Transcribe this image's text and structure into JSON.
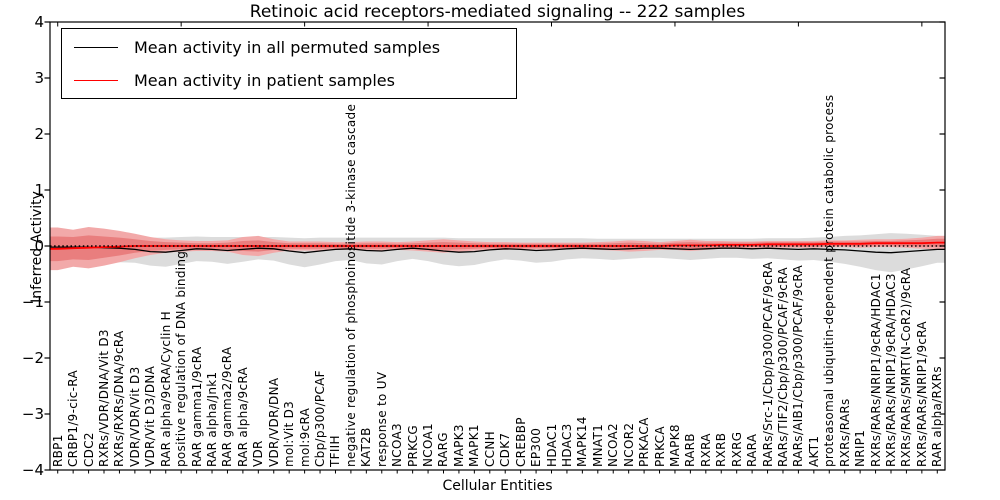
{
  "title": "Retinoic acid receptors-mediated signaling -- 222 samples",
  "axes": {
    "x_label": "Cellular Entities",
    "y_label": "Inferred Activity",
    "y_ticks": [
      "4",
      "3",
      "2",
      "1",
      "0",
      "−1",
      "−2",
      "−3",
      "−4"
    ],
    "ylim": [
      -4,
      4
    ]
  },
  "legend": {
    "items": [
      {
        "label": "Mean activity in all permuted samples",
        "color": "#000000"
      },
      {
        "label": "Mean activity in patient samples",
        "color": "#ff0000"
      }
    ]
  },
  "colors": {
    "background": "#ffffff",
    "frame": "#000000",
    "permuted_line": "#000000",
    "patient_line": "#ff0000",
    "permuted_band": "#dcdcdc",
    "patient_band_outer": "#f2a9a9",
    "patient_band_inner": "#e97e7e",
    "zero_line": "#000000"
  },
  "chart_data": {
    "type": "line",
    "title": "Retinoic acid receptors-mediated signaling -- 222 samples",
    "xlabel": "Cellular Entities",
    "ylabel": "Inferred Activity",
    "ylim": [
      -4,
      4
    ],
    "grid": false,
    "legend_position": "upper left",
    "zero_line": {
      "y": 0,
      "style": "dotted",
      "color": "#000000"
    },
    "categories": [
      "RBP1",
      "CRBP1/9-cic-RA",
      "CDC2",
      "RXRs/VDR/DNA/Vit D3",
      "RXRs/RXRs/DNA/9cRA",
      "VDR/VDR/Vit D3",
      "VDR/Vit D3/DNA",
      "RAR alpha/9cRA/Cyclin H",
      "positive regulation of DNA binding",
      "RAR gamma1/9cRA",
      "RAR alpha/Jnk1",
      "RAR gamma2/9cRA",
      "RAR alpha/9cRA",
      "VDR",
      "VDR/VDR/DNA",
      "mol:Vit D3",
      "mol:9cRA",
      "Cbp/p300/PCAF",
      "TFIIH",
      "negative regulation of phosphoinositide 3-kinase cascade",
      "KAT2B",
      "response to UV",
      "NCOA3",
      "PRKCG",
      "NCOA1",
      "RARG",
      "MAPK3",
      "MAPK1",
      "CCNH",
      "CDK7",
      "CREBBP",
      "EP300",
      "HDAC1",
      "HDAC3",
      "MAPK14",
      "MNAT1",
      "NCOA2",
      "NCOR2",
      "PRKACA",
      "PRKCA",
      "MAPK8",
      "RARB",
      "RXRA",
      "RXRB",
      "RXRG",
      "RARA",
      "RARs/Src-1/Cbp/p300/PCAF/9cRA",
      "RARs/TIF2/Cbp/p300/PCAF/9cRA",
      "RARs/AIB1/Cbp/p300/PCAF/9cRA",
      "AKT1",
      "proteasomal ubiquitin-dependent protein catabolic process",
      "RXRs/RARs",
      "NRIP1",
      "RXRs/RARs/NRIP1/9cRA/HDAC1",
      "RXRs/RARs/NRIP1/9cRA/HDAC3",
      "RXRs/RARs/SMRT(N-CoR2)/9cRA",
      "RXRs/RARs/NRIP1/9cRA",
      "RAR alpha/RXRs"
    ],
    "series": [
      {
        "name": "Mean activity in all permuted samples",
        "color": "#000000",
        "values": [
          -0.02,
          -0.02,
          -0.02,
          -0.03,
          -0.04,
          -0.06,
          -0.1,
          -0.11,
          -0.08,
          -0.05,
          -0.06,
          -0.08,
          -0.06,
          -0.04,
          -0.05,
          -0.09,
          -0.12,
          -0.09,
          -0.06,
          -0.05,
          -0.08,
          -0.09,
          -0.06,
          -0.04,
          -0.06,
          -0.09,
          -0.11,
          -0.1,
          -0.07,
          -0.05,
          -0.06,
          -0.08,
          -0.07,
          -0.05,
          -0.04,
          -0.05,
          -0.06,
          -0.05,
          -0.04,
          -0.04,
          -0.05,
          -0.06,
          -0.05,
          -0.04,
          -0.04,
          -0.05,
          -0.04,
          -0.05,
          -0.06,
          -0.05,
          -0.06,
          -0.07,
          -0.09,
          -0.11,
          -0.12,
          -0.1,
          -0.08,
          -0.06
        ]
      },
      {
        "name": "Mean activity in patient samples",
        "color": "#ff0000",
        "values": [
          -0.05,
          -0.04,
          -0.03,
          -0.02,
          -0.01,
          0,
          0,
          0,
          0,
          0,
          0,
          0,
          0,
          0,
          0,
          0,
          0,
          0,
          0,
          0,
          0,
          0,
          0,
          0,
          0,
          0,
          0,
          0,
          0,
          0,
          0,
          0,
          0,
          0,
          0,
          0,
          0,
          0,
          0,
          0,
          0.01,
          0.01,
          0.01,
          0.02,
          0.02,
          0.02,
          0.03,
          0.03,
          0.03,
          0.03,
          0.04,
          0.04,
          0.04,
          0.05,
          0.05,
          0.05,
          0.05,
          0.06
        ]
      }
    ],
    "bands": [
      {
        "name": "permuted samples spread",
        "center_series": 0,
        "color": "#dcdcdc",
        "half_widths": [
          0.25,
          0.27,
          0.3,
          0.28,
          0.25,
          0.24,
          0.25,
          0.26,
          0.24,
          0.22,
          0.22,
          0.24,
          0.22,
          0.2,
          0.21,
          0.24,
          0.26,
          0.24,
          0.21,
          0.2,
          0.23,
          0.24,
          0.21,
          0.19,
          0.21,
          0.24,
          0.25,
          0.24,
          0.21,
          0.19,
          0.2,
          0.22,
          0.21,
          0.19,
          0.18,
          0.18,
          0.19,
          0.18,
          0.17,
          0.17,
          0.18,
          0.19,
          0.18,
          0.17,
          0.17,
          0.18,
          0.18,
          0.19,
          0.2,
          0.2,
          0.22,
          0.25,
          0.28,
          0.32,
          0.35,
          0.32,
          0.28,
          0.24
        ]
      },
      {
        "name": "patient samples outer spread",
        "center_series": 1,
        "color": "#f2a9a9",
        "half_widths": [
          0.38,
          0.33,
          0.37,
          0.33,
          0.28,
          0.22,
          0.16,
          0.12,
          0.1,
          0.09,
          0.09,
          0.1,
          0.16,
          0.18,
          0.12,
          0.08,
          0.08,
          0.08,
          0.07,
          0.07,
          0.08,
          0.08,
          0.07,
          0.08,
          0.1,
          0.12,
          0.1,
          0.08,
          0.07,
          0.07,
          0.06,
          0.06,
          0.06,
          0.06,
          0.06,
          0.07,
          0.08,
          0.1,
          0.09,
          0.07,
          0.08,
          0.1,
          0.08,
          0.07,
          0.06,
          0.06,
          0.06,
          0.06,
          0.06,
          0.06,
          0.06,
          0.06,
          0.07,
          0.07,
          0.07,
          0.08,
          0.1,
          0.12
        ]
      },
      {
        "name": "patient samples inner spread",
        "center_series": 1,
        "color": "#e97e7e",
        "half_widths": [
          0.22,
          0.2,
          0.22,
          0.19,
          0.16,
          0.12,
          0.09,
          0.07,
          0.06,
          0.05,
          0.05,
          0.06,
          0.09,
          0.1,
          0.07,
          0.05,
          0.05,
          0.05,
          0.04,
          0.04,
          0.05,
          0.05,
          0.04,
          0.05,
          0.06,
          0.07,
          0.06,
          0.05,
          0.04,
          0.04,
          0.04,
          0.04,
          0.04,
          0.04,
          0.04,
          0.04,
          0.05,
          0.06,
          0.05,
          0.04,
          0.05,
          0.06,
          0.05,
          0.04,
          0.04,
          0.04,
          0.04,
          0.04,
          0.04,
          0.04,
          0.04,
          0.04,
          0.04,
          0.04,
          0.04,
          0.05,
          0.06,
          0.07
        ]
      }
    ]
  }
}
